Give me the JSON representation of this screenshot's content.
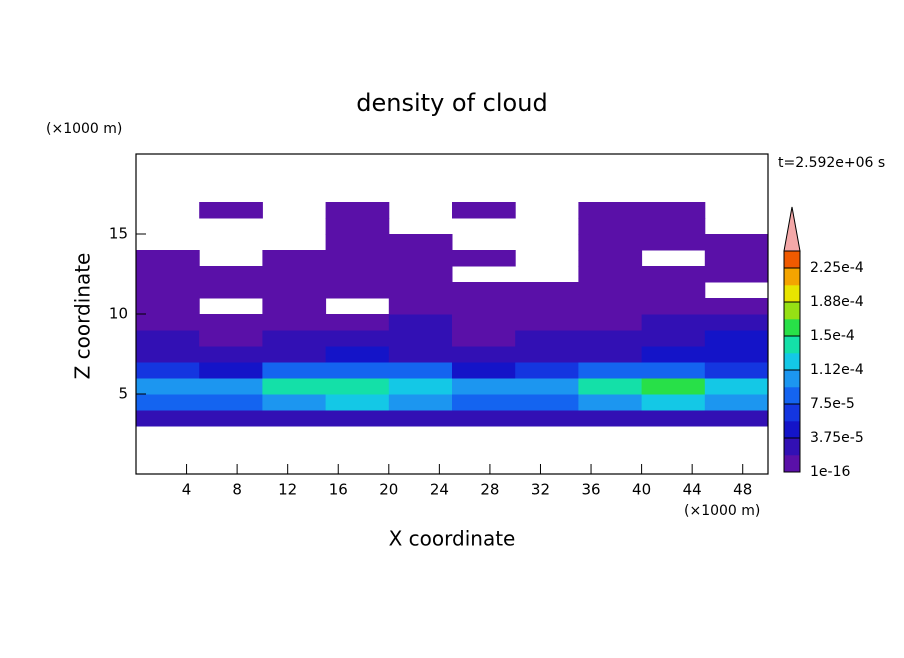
{
  "chart_data": {
    "type": "contour",
    "title": "density of cloud",
    "x_label": "X coordinate",
    "y_label": "Z coordinate",
    "x_unit": "(×1000 m)",
    "y_unit": "(×1000 m)",
    "time_label": "t=2.592e+06 s",
    "xlim": [
      0,
      50
    ],
    "ylim": [
      0,
      20
    ],
    "xticks": [
      4,
      8,
      12,
      16,
      20,
      24,
      28,
      32,
      36,
      40,
      44,
      48
    ],
    "yticks": [
      5,
      10,
      15
    ],
    "xbins": [
      0,
      5,
      10,
      15,
      20,
      25,
      30,
      35,
      40,
      45,
      50
    ],
    "ybins": [
      3,
      4,
      5,
      6,
      7,
      8,
      9,
      10,
      11,
      12,
      13,
      14,
      15,
      16,
      17
    ],
    "z": [
      [
        3e-05,
        3e-05,
        3e-05,
        3e-05,
        3e-05,
        3e-05,
        3e-05,
        3e-05,
        3e-05,
        3e-05
      ],
      [
        9e-05,
        9e-05,
        0.00011,
        0.00012,
        0.00011,
        8e-05,
        9e-05,
        0.00011,
        0.00012,
        0.00011
      ],
      [
        0.00011,
        0.00011,
        0.00014,
        0.00015,
        0.00013,
        0.0001,
        0.00011,
        0.00014,
        0.00016,
        0.00012
      ],
      [
        6e-05,
        5e-05,
        8e-05,
        9e-05,
        8e-05,
        5e-05,
        6e-05,
        8e-05,
        9e-05,
        7e-05
      ],
      [
        3e-05,
        2e-05,
        3e-05,
        4e-05,
        3e-05,
        2e-05,
        3e-05,
        3e-05,
        4e-05,
        5e-05
      ],
      [
        2e-05,
        1e-05,
        2e-05,
        2e-05,
        2e-05,
        1e-05,
        2e-05,
        2e-05,
        3e-05,
        4e-05
      ],
      [
        1e-05,
        1e-05,
        1e-05,
        1e-05,
        2e-05,
        1e-05,
        1e-05,
        1e-05,
        2e-05,
        2e-05
      ],
      [
        5e-06,
        null,
        1e-05,
        null,
        1e-05,
        1e-05,
        5e-06,
        1e-05,
        1e-05,
        1e-05
      ],
      [
        1e-05,
        5e-06,
        1e-05,
        5e-06,
        5e-06,
        5e-06,
        1e-05,
        5e-06,
        1e-05,
        null
      ],
      [
        1e-05,
        1e-05,
        1e-05,
        1e-05,
        5e-06,
        null,
        null,
        5e-06,
        5e-06,
        5e-06
      ],
      [
        5e-06,
        null,
        5e-06,
        1e-05,
        5e-06,
        5e-06,
        null,
        5e-06,
        null,
        5e-06
      ],
      [
        null,
        null,
        null,
        5e-06,
        1e-05,
        null,
        null,
        5e-06,
        5e-06,
        5e-06
      ],
      [
        null,
        null,
        null,
        5e-06,
        null,
        null,
        null,
        5e-06,
        5e-06,
        null
      ],
      [
        null,
        5e-06,
        null,
        5e-06,
        null,
        5e-06,
        null,
        5e-06,
        5e-06,
        null
      ]
    ],
    "colorbar": {
      "clim": [
        1e-16,
        0.00024375
      ],
      "ticks": [
        {
          "value": 1e-16,
          "label": "1e-16"
        },
        {
          "value": 3.75e-05,
          "label": "3.75e-5"
        },
        {
          "value": 7.5e-05,
          "label": "7.5e-5"
        },
        {
          "value": 0.0001125,
          "label": "1.12e-4"
        },
        {
          "value": 0.00015,
          "label": "1.5e-4"
        },
        {
          "value": 0.0001875,
          "label": "1.88e-4"
        },
        {
          "value": 0.000225,
          "label": "2.25e-4"
        }
      ],
      "colors": [
        "#5a10a8",
        "#3210b4",
        "#1414c8",
        "#1436e0",
        "#1464f0",
        "#1c96f0",
        "#14c8e6",
        "#14e0a8",
        "#28e048",
        "#96e014",
        "#e8e400",
        "#f4a400",
        "#f05a00"
      ],
      "over_color": "#f4a8a8"
    }
  }
}
